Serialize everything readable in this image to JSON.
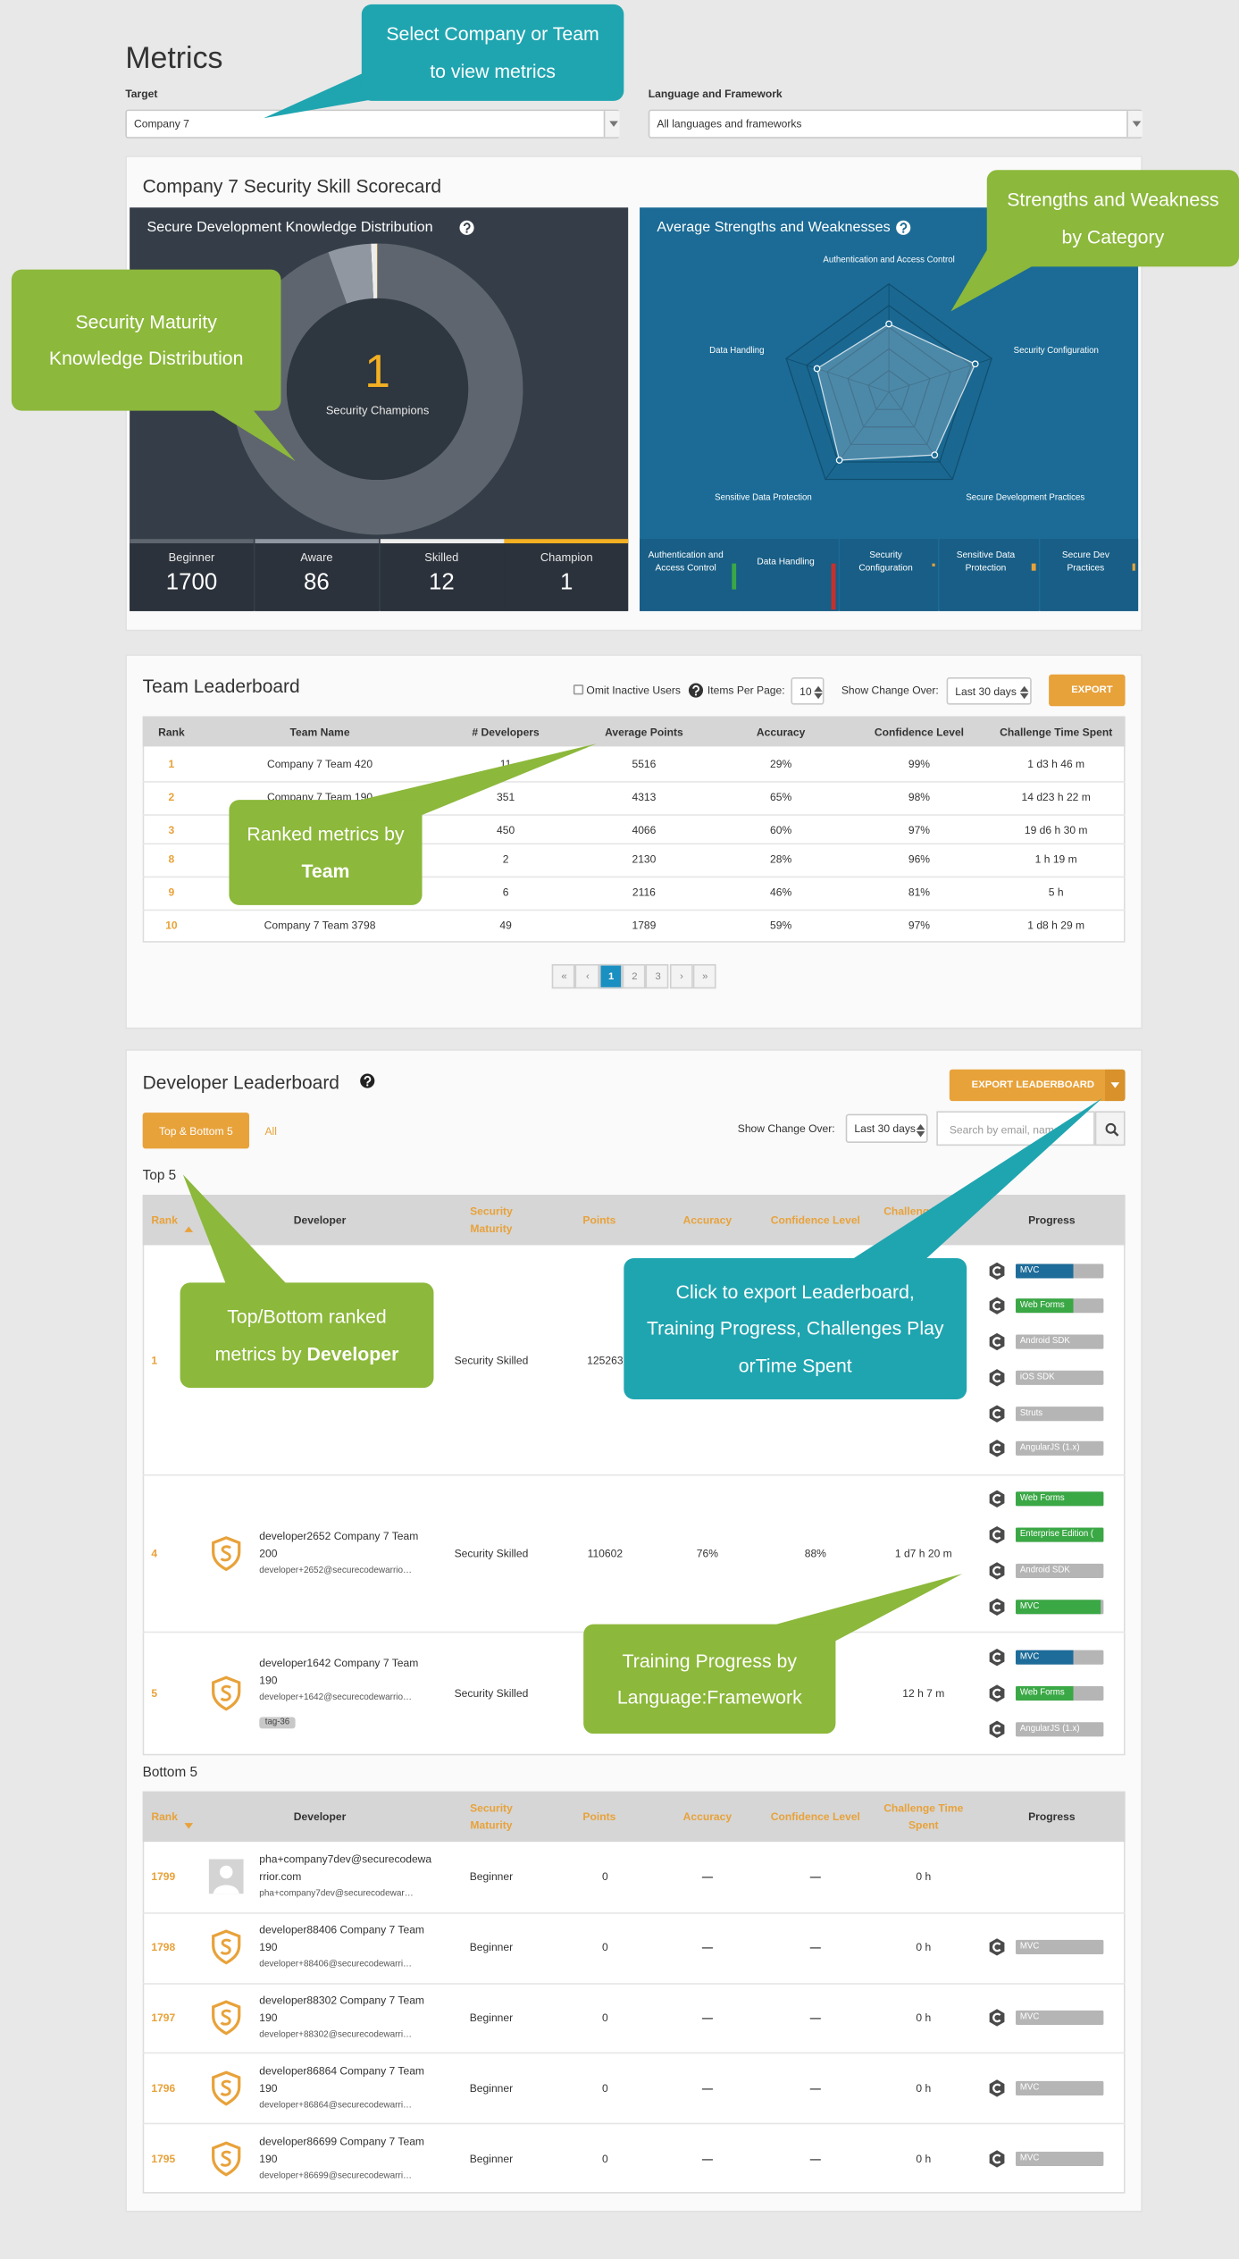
{
  "header": {
    "title": "Metrics",
    "target_label": "Target",
    "target_value": "Company 7",
    "language_label": "Language and Framework",
    "language_value": "All languages and frameworks"
  },
  "scorecard": {
    "title": "Company 7 Security Skill Scorecard",
    "distribution": {
      "title": "Secure Development Knowledge Distribution",
      "center_label": "Security Champions",
      "levels": [
        {
          "name": "Beginner",
          "value": 1700,
          "color": "#5e656e"
        },
        {
          "name": "Aware",
          "value": 86,
          "color": "#9097a0"
        },
        {
          "name": "Skilled",
          "value": 12,
          "color": "#ececec"
        },
        {
          "name": "Champion",
          "value": 1,
          "color": "#f4b023"
        }
      ]
    },
    "radar": {
      "type": "radar",
      "title": "Average Strengths and Weaknesses",
      "rlim": [
        0,
        100
      ],
      "axes": [
        {
          "name": "Authentication and Access Control",
          "value": 63
        },
        {
          "name": "Security Configuration",
          "value": 84
        },
        {
          "name": "Secure Development Practices",
          "value": 72
        },
        {
          "name": "Sensitive Data Protection",
          "value": 78
        },
        {
          "name": "Data Handling",
          "value": 70
        }
      ],
      "categories": [
        "Authentication and Access Control",
        "Data Handling",
        "Security Configuration",
        "Sensitive Data Protection",
        "Secure Dev Practices"
      ]
    }
  },
  "team_leaderboard": {
    "title": "Team Leaderboard",
    "omit_label": "Omit Inactive Users",
    "items_label": "Items Per Page:",
    "items_value": 10,
    "change_label": "Show Change Over:",
    "change_value": "Last 30 days",
    "export": "EXPORT",
    "columns": [
      "Rank",
      "Team Name",
      "# Developers",
      "Average Points",
      "Accuracy",
      "Confidence Level",
      "Challenge Time Spent"
    ],
    "rows": [
      [
        1,
        "Company 7 Team 420",
        11,
        5516,
        "29%",
        "99%",
        "1 d3 h 46 m"
      ],
      [
        2,
        "Company 7 Team 190",
        351,
        4313,
        "65%",
        "98%",
        "14 d23 h 22 m"
      ],
      [
        3,
        null,
        450,
        4066,
        "60%",
        "97%",
        "19 d6 h 30 m"
      ],
      [
        8,
        null,
        2,
        2130,
        "28%",
        "96%",
        "1 h 19 m"
      ],
      [
        9,
        null,
        6,
        2116,
        "46%",
        "81%",
        "5 h"
      ],
      [
        10,
        "Company 7 Team 3798",
        49,
        1789,
        "59%",
        "97%",
        "1 d8 h 29 m"
      ]
    ],
    "pages": [
      "«",
      "‹",
      1,
      2,
      3,
      "›",
      "»"
    ],
    "current_page": 1
  },
  "developer_leaderboard": {
    "title": "Developer Leaderboard",
    "export": "EXPORT LEADERBOARD",
    "tabs": [
      "Top & Bottom 5",
      "All"
    ],
    "active_tab": 0,
    "change_label": "Show Change Over:",
    "change_value": "Last 30 days",
    "search_placeholder": "Search by email, name",
    "columns": [
      "Rank",
      "Developer",
      "Security Maturity",
      "Points",
      "Accuracy",
      "Confidence Level",
      "Challenge Time Spent",
      "Progress"
    ],
    "top": {
      "title": "Top 5",
      "rows": [
        {
          "rank": 1,
          "avatar": null,
          "name": null,
          "email": null,
          "tag": null,
          "maturity": "Security Skilled",
          "points": 125263,
          "accuracy": null,
          "confidence": null,
          "time": null,
          "progress": [
            {
              "name": "MVC",
              "value": 65,
              "color": "#1d6c99"
            },
            {
              "name": "Web Forms",
              "value": 65,
              "color": "#3aa845"
            },
            {
              "name": "Android SDK",
              "value": 0,
              "color": "#3aa845"
            },
            {
              "name": "iOS SDK",
              "value": 0,
              "color": "#3aa845"
            },
            {
              "name": "Struts",
              "value": 0,
              "color": "#3aa845"
            },
            {
              "name": "AngularJS (1.x)",
              "value": 0,
              "color": "#3aa845"
            }
          ]
        },
        {
          "rank": 4,
          "avatar": "shield",
          "name": "developer2652 Company 7 Team 200",
          "email": "developer+2652@securecodewarrio…",
          "tag": null,
          "maturity": "Security Skilled",
          "points": 110602,
          "accuracy": "76%",
          "confidence": "88%",
          "time": "1 d7 h 20 m",
          "progress": [
            {
              "name": "Web Forms",
              "value": 100,
              "color": "#3aa845"
            },
            {
              "name": "Enterprise Edition (",
              "value": 100,
              "color": "#3aa845"
            },
            {
              "name": "Android SDK",
              "value": 0,
              "color": "#3aa845"
            },
            {
              "name": "MVC",
              "value": 97,
              "color": "#3aa845"
            }
          ]
        },
        {
          "rank": 5,
          "avatar": "shield",
          "name": "developer1642 Company 7 Team 190",
          "email": "developer+1642@securecodewarrio…",
          "tag": "tag-36",
          "maturity": "Security Skilled",
          "points": null,
          "accuracy": null,
          "confidence": null,
          "time": "12 h 7 m",
          "progress": [
            {
              "name": "MVC",
              "value": 65,
              "color": "#1d6c99"
            },
            {
              "name": "Web Forms",
              "value": 65,
              "color": "#3aa845"
            },
            {
              "name": "AngularJS (1.x)",
              "value": 0,
              "color": "#3aa845"
            }
          ]
        }
      ]
    },
    "bottom": {
      "title": "Bottom 5",
      "rows": [
        {
          "rank": 1799,
          "avatar": "placeholder",
          "name": "pha+company7dev@securecodewarrior.com",
          "email": "pha+company7dev@securecodewar…",
          "tag": null,
          "maturity": "Beginner",
          "points": 0,
          "accuracy": "—",
          "confidence": "—",
          "time": "0 h",
          "progress": []
        },
        {
          "rank": 1798,
          "avatar": "shield",
          "name": "developer88406 Company 7 Team 190",
          "email": "developer+88406@securecodewarri…",
          "tag": null,
          "maturity": "Beginner",
          "points": 0,
          "accuracy": "—",
          "confidence": "—",
          "time": "0 h",
          "progress": [
            {
              "name": "MVC",
              "value": 0,
              "color": "#3aa845"
            }
          ]
        },
        {
          "rank": 1797,
          "avatar": "shield",
          "name": "developer88302 Company 7 Team 190",
          "email": "developer+88302@securecodewarri…",
          "tag": null,
          "maturity": "Beginner",
          "points": 0,
          "accuracy": "—",
          "confidence": "—",
          "time": "0 h",
          "progress": [
            {
              "name": "MVC",
              "value": 0,
              "color": "#3aa845"
            }
          ]
        },
        {
          "rank": 1796,
          "avatar": "shield",
          "name": "developer86864 Company 7 Team 190",
          "email": "developer+86864@securecodewarri…",
          "tag": null,
          "maturity": "Beginner",
          "points": 0,
          "accuracy": "—",
          "confidence": "—",
          "time": "0 h",
          "progress": [
            {
              "name": "MVC",
              "value": 0,
              "color": "#3aa845"
            }
          ]
        },
        {
          "rank": 1795,
          "avatar": "shield",
          "name": "developer86699 Company 7 Team 190",
          "email": "developer+86699@securecodewarri…",
          "tag": null,
          "maturity": "Beginner",
          "points": 0,
          "accuracy": "—",
          "confidence": "—",
          "time": "0 h",
          "progress": [
            {
              "name": "MVC",
              "value": 0,
              "color": "#3aa845"
            }
          ]
        }
      ]
    }
  },
  "callouts": [
    {
      "text": "Select Company or Team to view metrics",
      "bold": null,
      "color": "#1fa5b0"
    },
    {
      "text": "Strengths and Weakness by Category",
      "bold": null,
      "color": "#8cb83b"
    },
    {
      "text": "Security Maturity Knowledge Distribution",
      "bold": null,
      "color": "#8cb83b"
    },
    {
      "text": "Ranked metrics by",
      "bold": "Team",
      "color": "#8cb83b"
    },
    {
      "text": "Top/Bottom ranked metrics by",
      "bold": "Developer",
      "color": "#8cb83b"
    },
    {
      "text": "Click to export Leaderboard, Training Progress, Challenges Play orTime Spent",
      "bold": null,
      "color": "#1fa5b0"
    },
    {
      "text": "Training Progress by Language:Framework",
      "bold": null,
      "color": "#8cb83b"
    }
  ]
}
